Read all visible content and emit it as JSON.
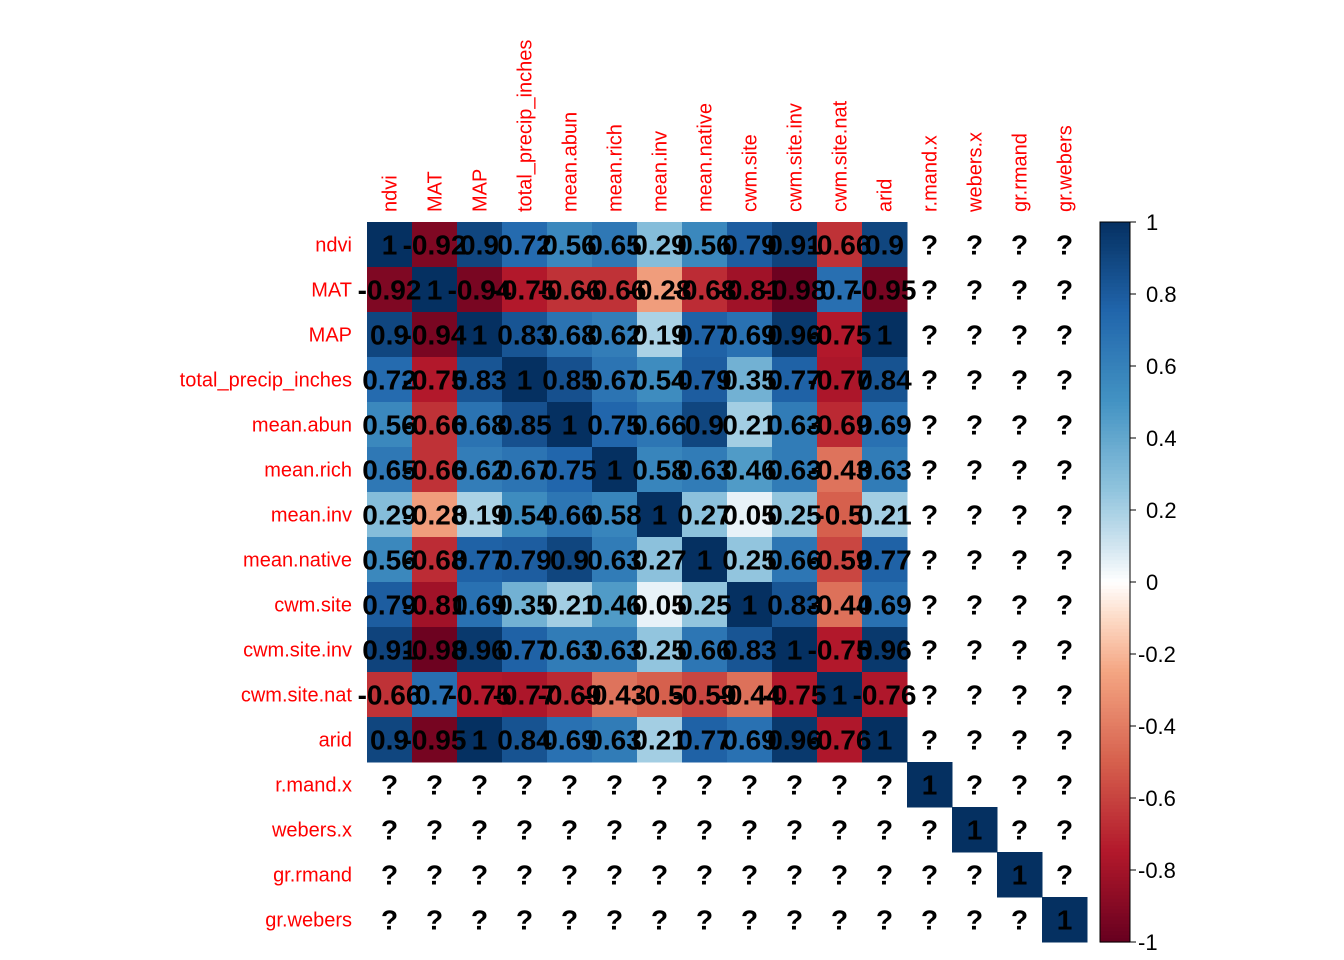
{
  "chart_data": {
    "type": "heatmap",
    "title": "",
    "variables": [
      "ndvi",
      "MAT",
      "MAP",
      "total_precip_inches",
      "mean.abun",
      "mean.rich",
      "mean.inv",
      "mean.native",
      "cwm.site",
      "cwm.site.inv",
      "cwm.site.nat",
      "arid",
      "r.mand.x",
      "webers.x",
      "gr.rmand",
      "gr.webers"
    ],
    "matrix": [
      [
        1,
        -0.92,
        0.9,
        0.72,
        0.56,
        0.65,
        0.29,
        0.56,
        0.79,
        0.91,
        -0.66,
        0.9,
        null,
        null,
        null,
        null
      ],
      [
        -0.92,
        1,
        -0.94,
        -0.75,
        -0.66,
        -0.66,
        -0.28,
        -0.68,
        -0.81,
        -0.98,
        0.7,
        -0.95,
        null,
        null,
        null,
        null
      ],
      [
        0.9,
        -0.94,
        1,
        0.83,
        0.68,
        0.62,
        0.19,
        0.77,
        0.69,
        0.96,
        -0.75,
        1,
        null,
        null,
        null,
        null
      ],
      [
        0.72,
        -0.75,
        0.83,
        1,
        0.85,
        0.67,
        0.54,
        0.79,
        0.35,
        0.77,
        -0.77,
        0.84,
        null,
        null,
        null,
        null
      ],
      [
        0.56,
        -0.66,
        0.68,
        0.85,
        1,
        0.75,
        0.66,
        0.9,
        0.21,
        0.63,
        -0.69,
        0.69,
        null,
        null,
        null,
        null
      ],
      [
        0.65,
        -0.66,
        0.62,
        0.67,
        0.75,
        1,
        0.58,
        0.63,
        0.46,
        0.63,
        -0.43,
        0.63,
        null,
        null,
        null,
        null
      ],
      [
        0.29,
        -0.28,
        0.19,
        0.54,
        0.66,
        0.58,
        1,
        0.27,
        0.05,
        0.25,
        -0.5,
        0.21,
        null,
        null,
        null,
        null
      ],
      [
        0.56,
        -0.68,
        0.77,
        0.79,
        0.9,
        0.63,
        0.27,
        1,
        0.25,
        0.66,
        -0.59,
        0.77,
        null,
        null,
        null,
        null
      ],
      [
        0.79,
        -0.81,
        0.69,
        0.35,
        0.21,
        0.46,
        0.05,
        0.25,
        1,
        0.83,
        -0.44,
        0.69,
        null,
        null,
        null,
        null
      ],
      [
        0.91,
        -0.98,
        0.96,
        0.77,
        0.63,
        0.63,
        0.25,
        0.66,
        0.83,
        1,
        -0.75,
        0.96,
        null,
        null,
        null,
        null
      ],
      [
        -0.66,
        0.7,
        -0.75,
        -0.77,
        -0.69,
        -0.43,
        -0.5,
        -0.59,
        -0.44,
        -0.75,
        1,
        -0.76,
        null,
        null,
        null,
        null
      ],
      [
        0.9,
        -0.95,
        1,
        0.84,
        0.69,
        0.63,
        0.21,
        0.77,
        0.69,
        0.96,
        -0.76,
        1,
        null,
        null,
        null,
        null
      ],
      [
        null,
        null,
        null,
        null,
        null,
        null,
        null,
        null,
        null,
        null,
        null,
        null,
        1,
        null,
        null,
        null
      ],
      [
        null,
        null,
        null,
        null,
        null,
        null,
        null,
        null,
        null,
        null,
        null,
        null,
        null,
        1,
        null,
        null
      ],
      [
        null,
        null,
        null,
        null,
        null,
        null,
        null,
        null,
        null,
        null,
        null,
        null,
        null,
        null,
        1,
        null
      ],
      [
        null,
        null,
        null,
        null,
        null,
        null,
        null,
        null,
        null,
        null,
        null,
        null,
        null,
        null,
        null,
        1
      ]
    ],
    "missing_label": "?",
    "color_scale": {
      "range": [
        -1,
        1
      ],
      "ticks": [
        -1,
        -0.8,
        -0.6,
        -0.4,
        -0.2,
        0,
        0.2,
        0.4,
        0.6,
        0.8,
        1
      ],
      "tick_labels": [
        "-1",
        "-0.8",
        "-0.6",
        "-0.4",
        "-0.2",
        "0",
        "0.2",
        "0.4",
        "0.6",
        "0.8",
        "1"
      ],
      "stops": [
        {
          "v": -1,
          "color": "#67001F"
        },
        {
          "v": -0.75,
          "color": "#B2182B"
        },
        {
          "v": -0.5,
          "color": "#D6604D"
        },
        {
          "v": -0.25,
          "color": "#F4A582"
        },
        {
          "v": -0.1,
          "color": "#FDDBC7"
        },
        {
          "v": 0,
          "color": "#FFFFFF"
        },
        {
          "v": 0.1,
          "color": "#D1E5F0"
        },
        {
          "v": 0.25,
          "color": "#92C5DE"
        },
        {
          "v": 0.5,
          "color": "#4393C3"
        },
        {
          "v": 0.75,
          "color": "#2166AC"
        },
        {
          "v": 1,
          "color": "#053061"
        }
      ]
    },
    "label_color": "#FF0000",
    "value_text_color": "#000000",
    "legend_position": "right"
  }
}
